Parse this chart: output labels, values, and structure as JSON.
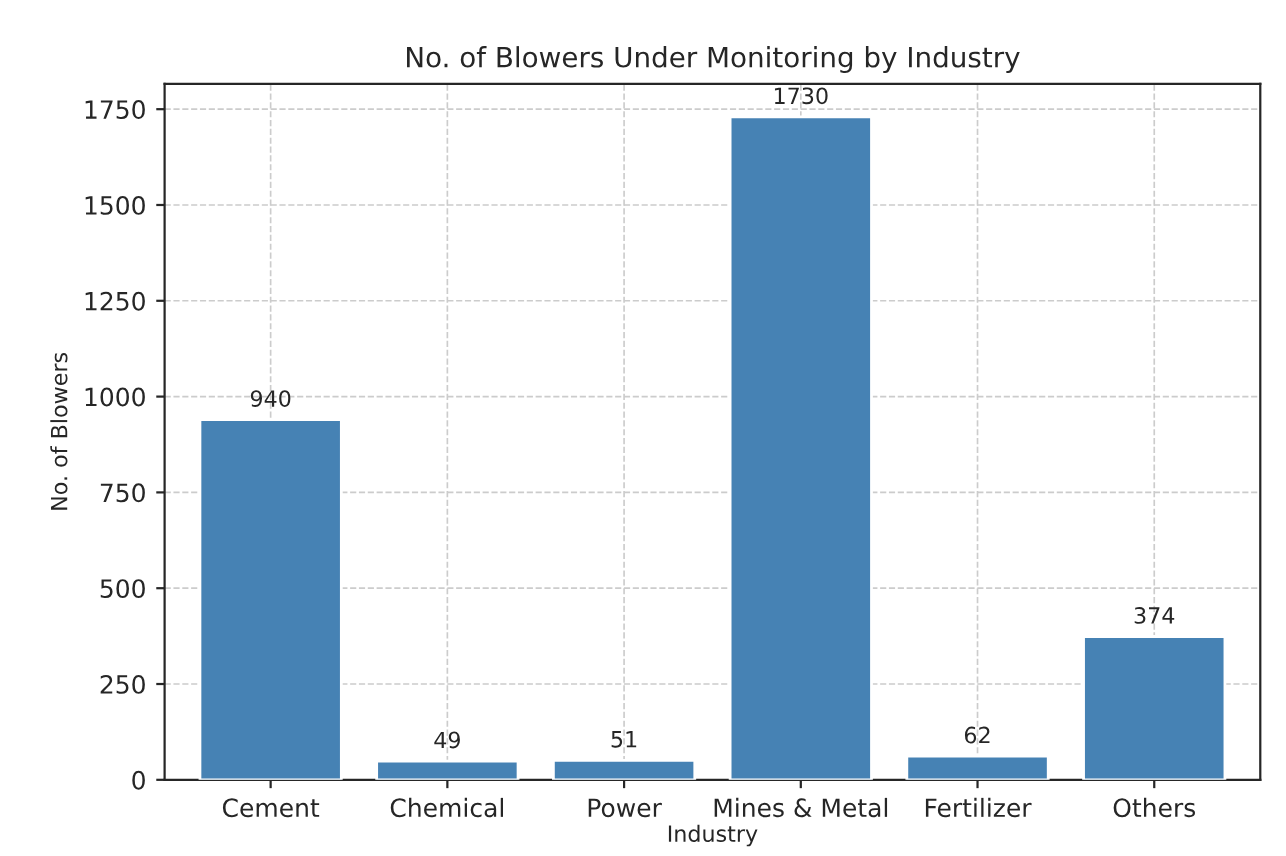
{
  "chart_data": {
    "type": "bar",
    "title": "No. of Blowers Under Monitoring by Industry",
    "xlabel": "Industry",
    "ylabel": "No. of Blowers",
    "categories": [
      "Cement",
      "Chemical",
      "Power",
      "Mines & Metal",
      "Fertilizer",
      "Others"
    ],
    "values": [
      940,
      49,
      51,
      1730,
      62,
      374
    ],
    "color": "#4682b4",
    "ylim": [
      0,
      1816
    ],
    "yticks": [
      0,
      250,
      500,
      750,
      1000,
      1250,
      1500,
      1750
    ],
    "grid": true,
    "data_labels": true
  }
}
